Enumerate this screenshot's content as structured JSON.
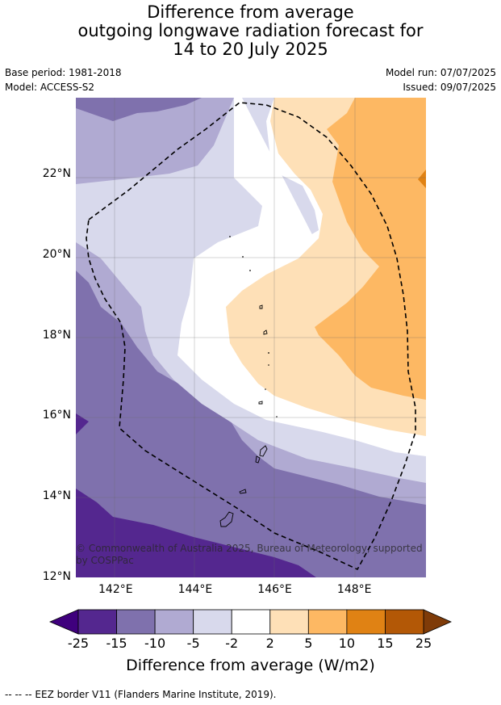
{
  "title_lines": [
    "Difference from average",
    "outgoing longwave radiation forecast for",
    "14 to 20 July 2025"
  ],
  "base_period": "Base period: 1981-2018",
  "model": "Model: ACCESS-S2",
  "model_run": "Model run: 07/07/2025",
  "issued": "Issued: 09/07/2025",
  "copyright": "© Commonwealth of Australia 2025, Bureau of Meteorology, supported by COSPPac",
  "footnote": "--  --  -- EEZ border V11 (Flanders Marine Institute, 2019).",
  "map_extent": {
    "lon": [
      141,
      149.8
    ],
    "lat": [
      12,
      23.9
    ]
  },
  "lat_ticks": [
    {
      "value": 12,
      "label": "12°N"
    },
    {
      "value": 14,
      "label": "14°N"
    },
    {
      "value": 16,
      "label": "16°N"
    },
    {
      "value": 18,
      "label": "18°N"
    },
    {
      "value": 20,
      "label": "20°N"
    },
    {
      "value": 22,
      "label": "22°N"
    }
  ],
  "lon_ticks": [
    {
      "value": 142,
      "label": "142°E"
    },
    {
      "value": 144,
      "label": "144°E"
    },
    {
      "value": 146,
      "label": "146°E"
    },
    {
      "value": 148,
      "label": "148°E"
    }
  ],
  "colorbar": {
    "title": "Difference from average (W/m2)",
    "boundaries": [
      "-25",
      "-15",
      "-10",
      "-5",
      "-2",
      "2",
      "5",
      "10",
      "15",
      "25"
    ],
    "colors": [
      "#54278f",
      "#7f71ad",
      "#b0aad2",
      "#d8d9ec",
      "#ffffff",
      "#fee0b7",
      "#fdb863",
      "#e08214",
      "#b35806"
    ],
    "under_color": "#3f007d",
    "over_color": "#7f3b08"
  }
}
